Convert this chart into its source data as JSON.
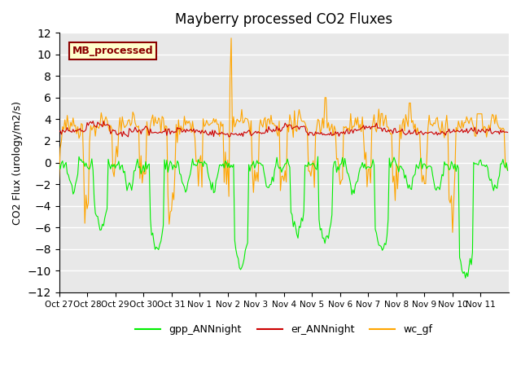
{
  "title": "Mayberry processed CO2 Fluxes",
  "ylabel": "CO2 Flux (urology/m2/s)",
  "ylim": [
    -12,
    12
  ],
  "yticks": [
    -12,
    -10,
    -8,
    -6,
    -4,
    -2,
    0,
    2,
    4,
    6,
    8,
    10,
    12
  ],
  "xtick_labels": [
    "Oct 27",
    "Oct 28",
    "Oct 29",
    "Oct 30",
    "Oct 31",
    "Nov 1",
    "Nov 2",
    "Nov 3",
    "Nov 4",
    "Nov 5",
    "Nov 6",
    "Nov 7",
    "Nov 8",
    "Nov 9",
    "Nov 10",
    "Nov 11"
  ],
  "n_points": 384,
  "days": 16,
  "bg_color": "#e8e8e8",
  "legend_entries": [
    "gpp_ANNnight",
    "er_ANNnight",
    "wc_gf"
  ],
  "legend_colors": [
    "#00ee00",
    "#cc0000",
    "#ffa500"
  ],
  "annotation_text": "MB_processed",
  "annotation_bg": "#ffffcc",
  "annotation_border": "#8b0000",
  "seed": 42
}
